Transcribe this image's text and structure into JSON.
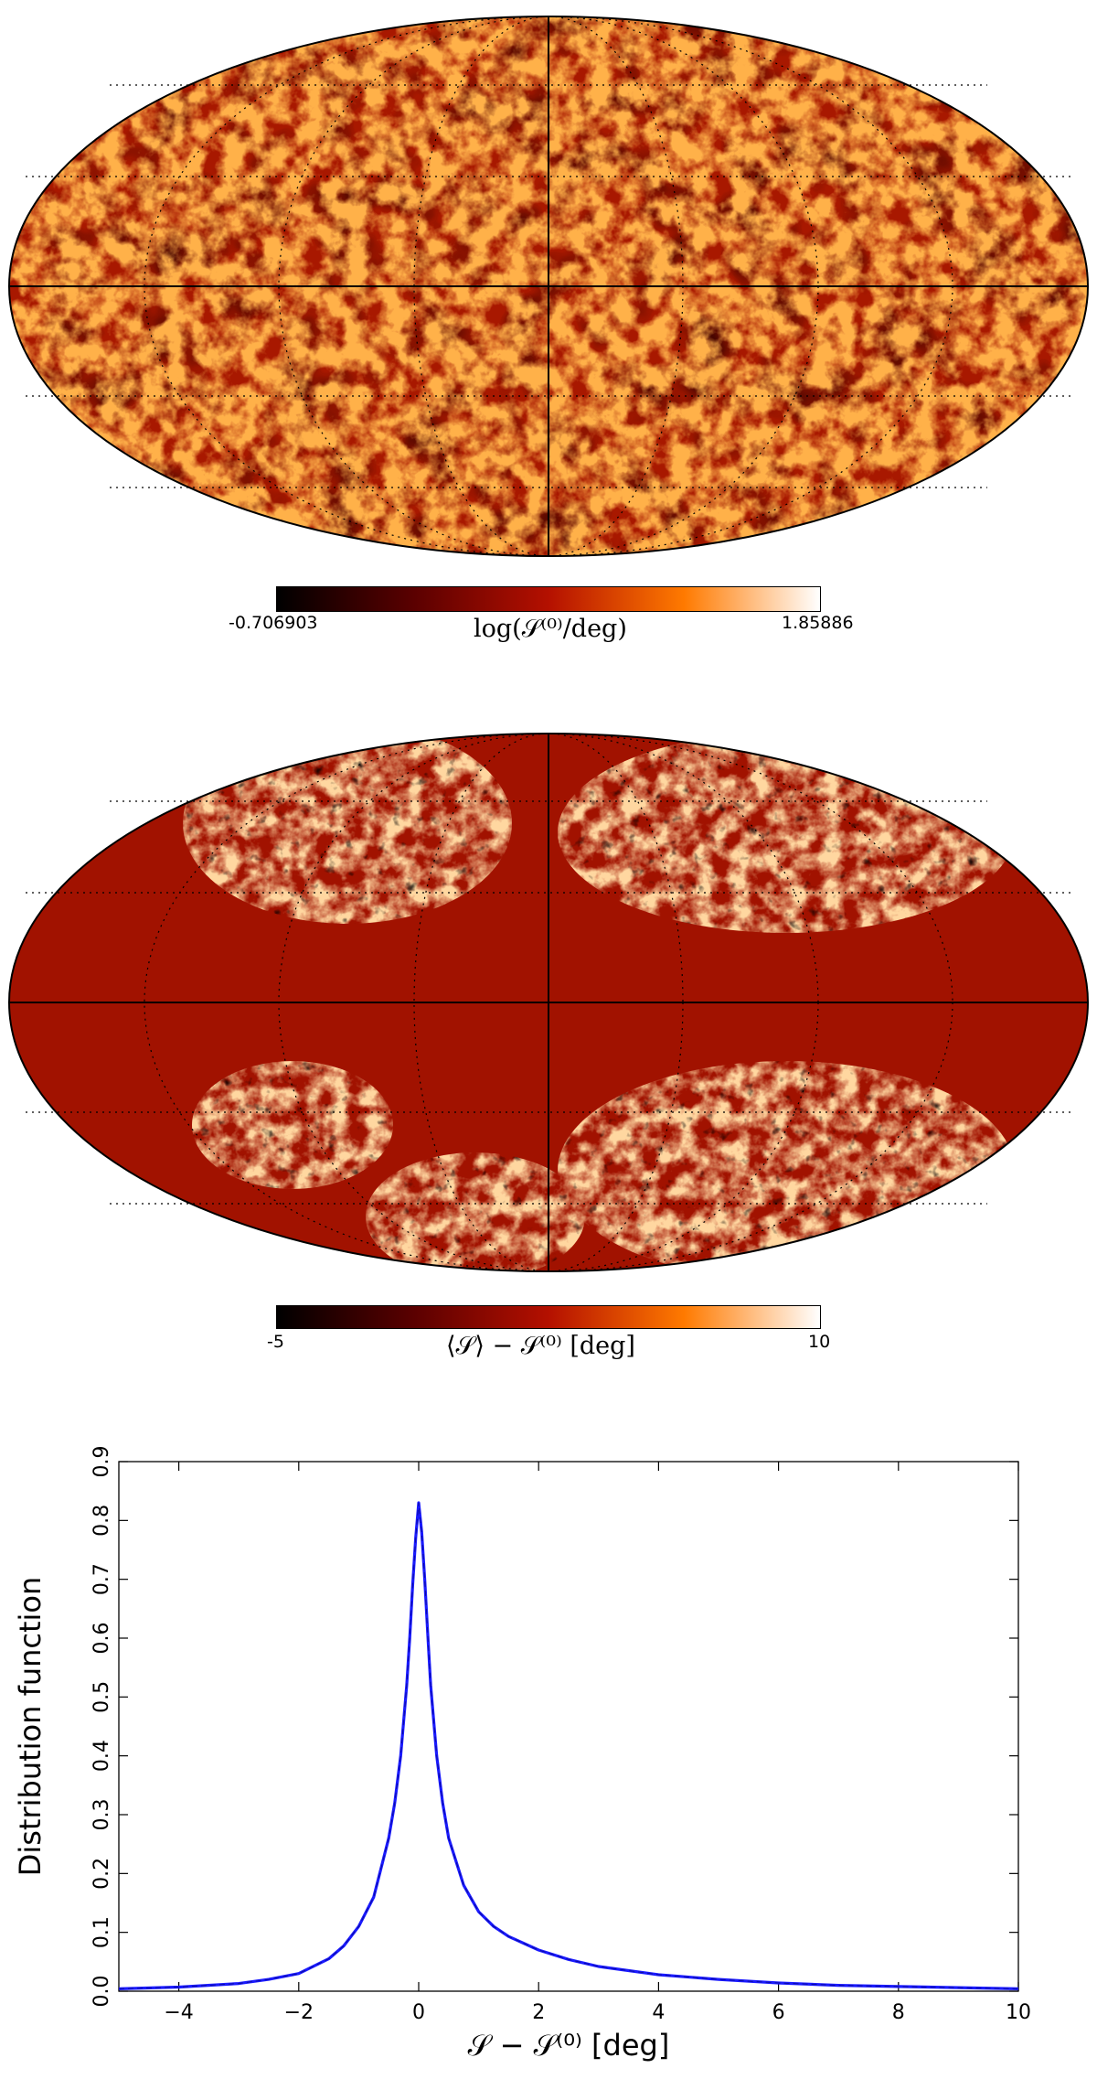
{
  "maps": [
    {
      "colorbar": {
        "min_label": "-0.706903",
        "max_label": "1.85886",
        "label_text": "log(𝒮⁽⁰⁾/deg)"
      },
      "projection": "mollweide",
      "colormap": "gist_heat"
    },
    {
      "colorbar": {
        "min_label": "-5",
        "max_label": "10",
        "label_text": "⟨𝒮⟩ − 𝒮⁽⁰⁾ [deg]"
      },
      "projection": "mollweide",
      "colormap": "gist_heat"
    }
  ],
  "chart_data": {
    "type": "line",
    "title": "",
    "xlabel": "𝒮 − 𝒮⁽⁰⁾ [deg]",
    "ylabel": "Distribution function",
    "xlim": [
      -5,
      10
    ],
    "ylim": [
      0,
      0.9
    ],
    "xticks": [
      "−4",
      "−2",
      "0",
      "2",
      "4",
      "6",
      "8",
      "10"
    ],
    "yticks": [
      "0.0",
      "0.1",
      "0.2",
      "0.3",
      "0.4",
      "0.5",
      "0.6",
      "0.7",
      "0.8",
      "0.9"
    ],
    "grid": false,
    "series": [
      {
        "color": "#1a1aff",
        "x": [
          -5,
          -4,
          -3,
          -2.5,
          -2,
          -1.5,
          -1.25,
          -1,
          -0.75,
          -0.5,
          -0.4,
          -0.3,
          -0.2,
          -0.15,
          -0.1,
          -0.05,
          0,
          0.05,
          0.1,
          0.15,
          0.2,
          0.3,
          0.4,
          0.5,
          0.75,
          1,
          1.25,
          1.5,
          2,
          2.5,
          3,
          3.5,
          4,
          5,
          6,
          7,
          8,
          9,
          10
        ],
        "y": [
          0.004,
          0.007,
          0.013,
          0.02,
          0.03,
          0.055,
          0.077,
          0.11,
          0.16,
          0.26,
          0.32,
          0.4,
          0.52,
          0.6,
          0.69,
          0.77,
          0.83,
          0.78,
          0.7,
          0.61,
          0.52,
          0.4,
          0.32,
          0.26,
          0.18,
          0.135,
          0.11,
          0.093,
          0.07,
          0.054,
          0.042,
          0.035,
          0.028,
          0.02,
          0.014,
          0.01,
          0.008,
          0.006,
          0.004
        ]
      }
    ]
  }
}
